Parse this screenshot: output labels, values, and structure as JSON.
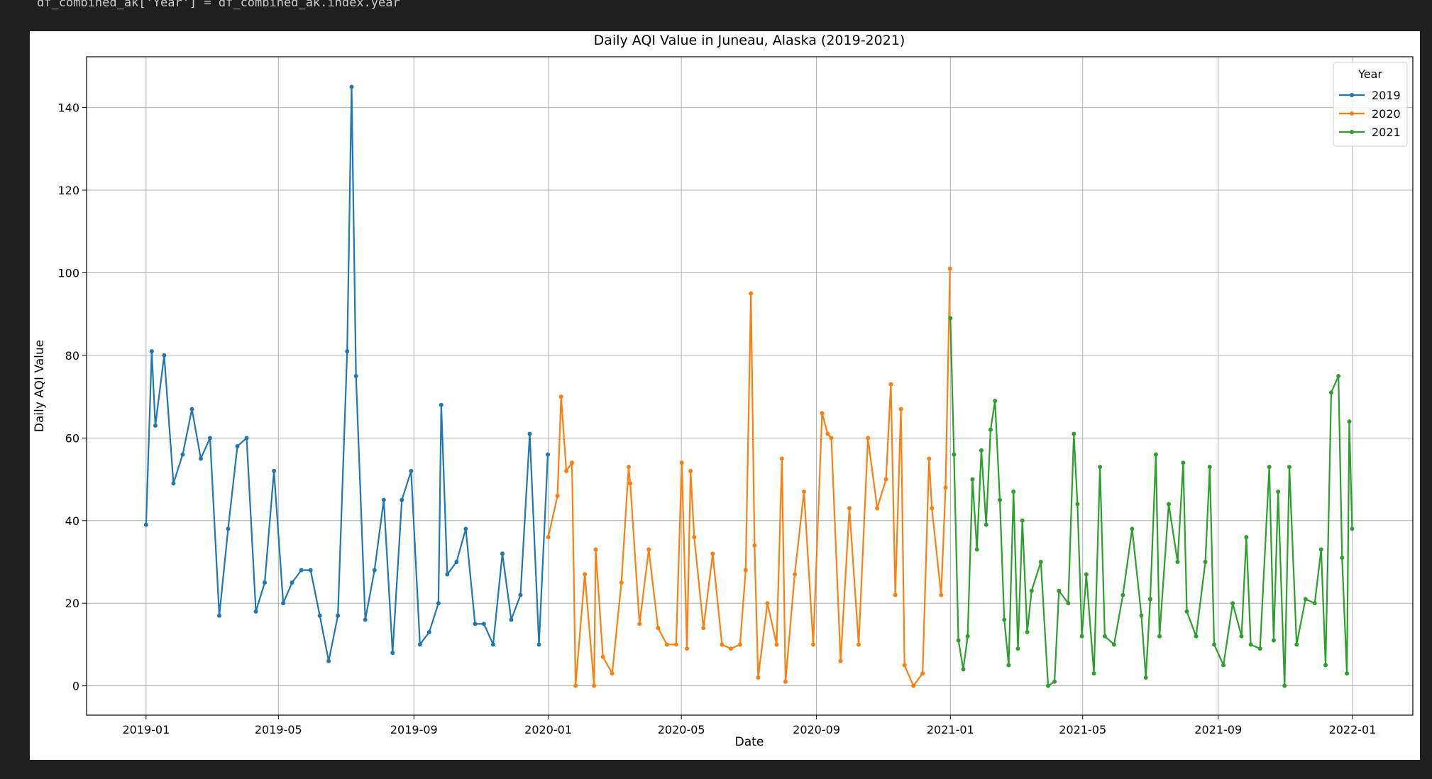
{
  "code_line": "df_combined_ak['Year'] = df_combined_ak.index.year",
  "chart_data": {
    "type": "line",
    "title": "Daily AQI Value in Juneau, Alaska (2019-2021)",
    "x_label": "Date",
    "y_label": "Daily AQI Value",
    "legend_title": "Year",
    "legend_loc": "upper right",
    "grid": true,
    "xlim": [
      2018.852,
      2022.15
    ],
    "ylim": [
      -7.1,
      152.3
    ],
    "xticks": [
      {
        "value": 2019.0,
        "label": "2019-01"
      },
      {
        "value": 2019.329,
        "label": "2019-05"
      },
      {
        "value": 2019.666,
        "label": "2019-09"
      },
      {
        "value": 2020.0,
        "label": "2020-01"
      },
      {
        "value": 2020.331,
        "label": "2020-05"
      },
      {
        "value": 2020.667,
        "label": "2020-09"
      },
      {
        "value": 2021.0,
        "label": "2021-01"
      },
      {
        "value": 2021.329,
        "label": "2021-05"
      },
      {
        "value": 2021.666,
        "label": "2021-09"
      },
      {
        "value": 2022.0,
        "label": "2022-01"
      }
    ],
    "yticks": [
      0,
      20,
      40,
      60,
      80,
      100,
      120,
      140
    ],
    "series": [
      {
        "name": "2019",
        "color": "#1f77b4",
        "x": [
          2019.0,
          2019.014,
          2019.023,
          2019.045,
          2019.068,
          2019.091,
          2019.114,
          2019.136,
          2019.159,
          2019.182,
          2019.204,
          2019.227,
          2019.25,
          2019.273,
          2019.295,
          2019.318,
          2019.341,
          2019.363,
          2019.386,
          2019.409,
          2019.432,
          2019.454,
          2019.477,
          2019.5,
          2019.511,
          2019.522,
          2019.545,
          2019.568,
          2019.591,
          2019.613,
          2019.636,
          2019.659,
          2019.681,
          2019.704,
          2019.727,
          2019.734,
          2019.749,
          2019.772,
          2019.795,
          2019.818,
          2019.84,
          2019.863,
          2019.886,
          2019.908,
          2019.931,
          2019.954,
          2019.977,
          2019.999
        ],
        "values": [
          39,
          81,
          63,
          80,
          49,
          56,
          67,
          55,
          60,
          17,
          38,
          58,
          60,
          18,
          25,
          52,
          20,
          25,
          28,
          28,
          17,
          6,
          17,
          81,
          145,
          75,
          16,
          28,
          45,
          8,
          45,
          52,
          10,
          13,
          20,
          68,
          27,
          30,
          38,
          15,
          15,
          10,
          32,
          16,
          22,
          61,
          10,
          56
        ]
      },
      {
        "name": "2020",
        "color": "#ff7f0e",
        "x": [
          2020.0,
          2020.023,
          2020.032,
          2020.045,
          2020.059,
          2020.068,
          2020.091,
          2020.114,
          2020.118,
          2020.136,
          2020.159,
          2020.182,
          2020.2,
          2020.204,
          2020.227,
          2020.25,
          2020.273,
          2020.295,
          2020.318,
          2020.332,
          2020.345,
          2020.354,
          2020.363,
          2020.386,
          2020.409,
          2020.432,
          2020.454,
          2020.477,
          2020.491,
          2020.504,
          2020.513,
          2020.522,
          2020.545,
          2020.568,
          2020.581,
          2020.59,
          2020.613,
          2020.636,
          2020.659,
          2020.681,
          2020.695,
          2020.704,
          2020.727,
          2020.749,
          2020.772,
          2020.795,
          2020.818,
          2020.84,
          2020.852,
          2020.863,
          2020.877,
          2020.886,
          2020.908,
          2020.931,
          2020.947,
          2020.954,
          2020.977,
          2020.988,
          2020.999
        ],
        "values": [
          36,
          46,
          70,
          52,
          54,
          0,
          27,
          0,
          33,
          7,
          3,
          25,
          53,
          49,
          15,
          33,
          14,
          10,
          10,
          54,
          9,
          52,
          36,
          14,
          32,
          10,
          9,
          10,
          28,
          95,
          34,
          2,
          20,
          10,
          55,
          1,
          27,
          47,
          10,
          66,
          61,
          60,
          6,
          43,
          10,
          60,
          43,
          50,
          73,
          22,
          67,
          5,
          0,
          3,
          55,
          43,
          22,
          48,
          101
        ]
      },
      {
        "name": "2021",
        "color": "#2ca02c",
        "x": [
          2021.0,
          2021.009,
          2021.02,
          2021.032,
          2021.043,
          2021.055,
          2021.066,
          2021.077,
          2021.089,
          2021.1,
          2021.111,
          2021.123,
          2021.134,
          2021.145,
          2021.157,
          2021.168,
          2021.179,
          2021.191,
          2021.202,
          2021.225,
          2021.243,
          2021.259,
          2021.27,
          2021.293,
          2021.307,
          2021.316,
          2021.327,
          2021.338,
          2021.357,
          2021.372,
          2021.384,
          2021.407,
          2021.429,
          2021.452,
          2021.475,
          2021.486,
          2021.497,
          2021.511,
          2021.52,
          2021.543,
          2021.565,
          2021.579,
          2021.588,
          2021.611,
          2021.634,
          2021.645,
          2021.656,
          2021.679,
          2021.702,
          2021.724,
          2021.736,
          2021.747,
          2021.77,
          2021.793,
          2021.804,
          2021.815,
          2021.831,
          2021.843,
          2021.861,
          2021.883,
          2021.906,
          2021.922,
          2021.933,
          2021.947,
          2021.965,
          2021.974,
          2021.986,
          2021.992,
          2021.999
        ],
        "values": [
          89,
          56,
          11,
          4,
          12,
          50,
          33,
          57,
          39,
          62,
          69,
          45,
          16,
          5,
          47,
          9,
          40,
          13,
          23,
          30,
          0,
          1,
          23,
          20,
          61,
          44,
          12,
          27,
          3,
          53,
          12,
          10,
          22,
          38,
          17,
          2,
          21,
          56,
          12,
          44,
          30,
          54,
          18,
          12,
          30,
          53,
          10,
          5,
          20,
          12,
          36,
          10,
          9,
          53,
          11,
          47,
          0,
          53,
          10,
          21,
          20,
          33,
          5,
          71,
          75,
          31,
          3,
          64,
          38
        ]
      }
    ]
  }
}
